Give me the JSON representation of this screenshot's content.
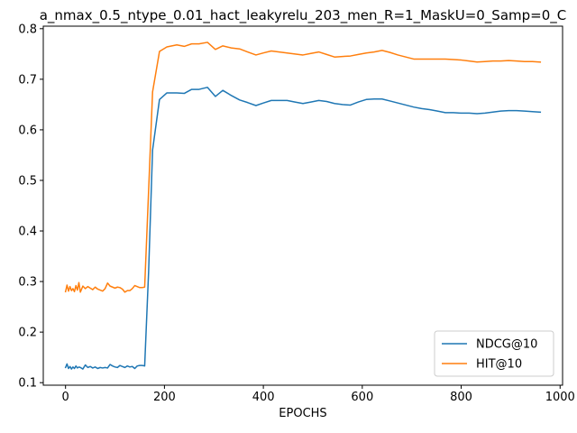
{
  "chart_data": {
    "type": "line",
    "title": "a_nmax_0.5_ntype_0.01_hact_leakyrelu_203_men_R=1_MaskU=0_Samp=0_C",
    "xlabel": "EPOCHS",
    "ylabel": "",
    "xlim": [
      -45,
      1005
    ],
    "ylim": [
      0.095,
      0.805
    ],
    "xticks": [
      0,
      200,
      400,
      600,
      800,
      1000
    ],
    "yticks": [
      0.1,
      0.2,
      0.3,
      0.4,
      0.5,
      0.6,
      0.7,
      0.8
    ],
    "legend_position": "lower-right",
    "grid": false,
    "series": [
      {
        "name": "NDCG@10",
        "color": "#1f77b4",
        "x": [
          0,
          3,
          6,
          9,
          12,
          15,
          18,
          21,
          24,
          27,
          30,
          35,
          40,
          45,
          50,
          55,
          60,
          65,
          70,
          75,
          80,
          85,
          90,
          95,
          100,
          105,
          110,
          115,
          120,
          125,
          130,
          135,
          140,
          145,
          150,
          155,
          160,
          168,
          176,
          190,
          205,
          225,
          240,
          255,
          270,
          287,
          303,
          318,
          335,
          352,
          368,
          385,
          400,
          416,
          432,
          448,
          464,
          480,
          496,
          512,
          528,
          544,
          560,
          576,
          592,
          608,
          624,
          640,
          656,
          672,
          688,
          704,
          720,
          736,
          752,
          768,
          784,
          800,
          816,
          832,
          848,
          864,
          880,
          896,
          912,
          928,
          944,
          960
        ],
        "values": [
          0.13,
          0.137,
          0.128,
          0.132,
          0.127,
          0.131,
          0.128,
          0.133,
          0.129,
          0.131,
          0.13,
          0.127,
          0.135,
          0.13,
          0.132,
          0.129,
          0.131,
          0.128,
          0.13,
          0.129,
          0.13,
          0.129,
          0.136,
          0.133,
          0.131,
          0.13,
          0.134,
          0.132,
          0.13,
          0.133,
          0.131,
          0.132,
          0.128,
          0.133,
          0.134,
          0.134,
          0.133,
          0.32,
          0.56,
          0.66,
          0.673,
          0.673,
          0.672,
          0.68,
          0.68,
          0.684,
          0.666,
          0.678,
          0.668,
          0.659,
          0.654,
          0.648,
          0.653,
          0.658,
          0.658,
          0.658,
          0.655,
          0.652,
          0.655,
          0.658,
          0.656,
          0.652,
          0.65,
          0.649,
          0.655,
          0.66,
          0.661,
          0.661,
          0.657,
          0.653,
          0.649,
          0.645,
          0.642,
          0.64,
          0.637,
          0.634,
          0.634,
          0.633,
          0.633,
          0.632,
          0.633,
          0.635,
          0.637,
          0.638,
          0.638,
          0.637,
          0.636,
          0.635
        ]
      },
      {
        "name": "HIT@10",
        "color": "#ff7f0e",
        "x": [
          0,
          3,
          6,
          9,
          12,
          15,
          18,
          21,
          24,
          27,
          30,
          35,
          40,
          45,
          50,
          55,
          60,
          65,
          70,
          75,
          80,
          85,
          90,
          95,
          100,
          105,
          110,
          115,
          120,
          125,
          130,
          135,
          140,
          145,
          150,
          155,
          160,
          168,
          176,
          190,
          205,
          225,
          240,
          255,
          270,
          287,
          303,
          318,
          335,
          352,
          368,
          385,
          400,
          416,
          432,
          448,
          464,
          480,
          496,
          512,
          528,
          544,
          560,
          576,
          592,
          608,
          624,
          640,
          656,
          672,
          688,
          704,
          720,
          736,
          752,
          768,
          784,
          800,
          816,
          832,
          848,
          864,
          880,
          896,
          912,
          928,
          944,
          960
        ],
        "values": [
          0.28,
          0.293,
          0.281,
          0.29,
          0.282,
          0.286,
          0.28,
          0.292,
          0.283,
          0.298,
          0.279,
          0.291,
          0.286,
          0.29,
          0.287,
          0.284,
          0.289,
          0.285,
          0.283,
          0.281,
          0.286,
          0.297,
          0.291,
          0.289,
          0.287,
          0.289,
          0.288,
          0.285,
          0.279,
          0.282,
          0.282,
          0.286,
          0.292,
          0.29,
          0.288,
          0.288,
          0.289,
          0.48,
          0.675,
          0.755,
          0.764,
          0.768,
          0.765,
          0.77,
          0.77,
          0.773,
          0.759,
          0.766,
          0.762,
          0.76,
          0.754,
          0.748,
          0.752,
          0.756,
          0.754,
          0.752,
          0.75,
          0.748,
          0.751,
          0.754,
          0.749,
          0.744,
          0.745,
          0.746,
          0.749,
          0.752,
          0.754,
          0.757,
          0.753,
          0.748,
          0.744,
          0.74,
          0.74,
          0.74,
          0.74,
          0.74,
          0.739,
          0.738,
          0.736,
          0.734,
          0.735,
          0.736,
          0.736,
          0.737,
          0.736,
          0.735,
          0.735,
          0.734
        ]
      }
    ]
  }
}
